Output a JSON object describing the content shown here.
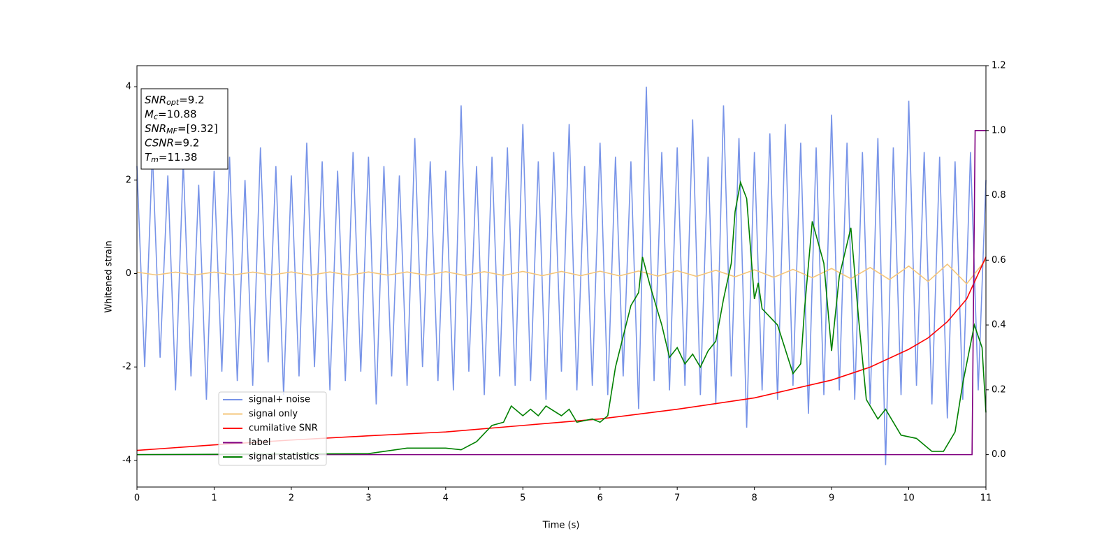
{
  "chart_data": {
    "type": "line",
    "x_label": "Time (s)",
    "y_label": "Whitened strain",
    "xlim": [
      0,
      11
    ],
    "xticks": [
      0,
      1,
      2,
      3,
      4,
      5,
      6,
      7,
      8,
      9,
      10,
      11
    ],
    "ylim": [
      -4.57,
      4.45
    ],
    "yticks": [
      -4,
      -2,
      0,
      2,
      4
    ],
    "y2lim": [
      -0.1,
      1.2
    ],
    "y2ticks": [
      {
        "value": 0,
        "label": "0.0"
      },
      {
        "value": 0.2,
        "label": "0.2"
      },
      {
        "value": 0.4,
        "label": "0.4"
      },
      {
        "value": 0.6,
        "label": "0.6"
      },
      {
        "value": 0.8,
        "label": "0.8"
      },
      {
        "value": 1,
        "label": "1.0"
      },
      {
        "value": 1.2,
        "label": "1.2"
      }
    ],
    "annotation": [
      {
        "var": "SNR",
        "sub": "opt",
        "text": "=9.2"
      },
      {
        "var": "M",
        "sub": "c",
        "text": "=10.88"
      },
      {
        "var": "SNR",
        "sub": "MF",
        "text": "=[9.32]"
      },
      {
        "var": "CSNR",
        "text": "=9.2"
      },
      {
        "var": "T",
        "sub": "m",
        "text": "=11.38"
      }
    ],
    "series": [
      {
        "name": "signal+ noise",
        "color": "#7894e8",
        "x": [
          0,
          0.1,
          0.2,
          0.3,
          0.4,
          0.5,
          0.6,
          0.7,
          0.8,
          0.9,
          1,
          1.1,
          1.2,
          1.3,
          1.4,
          1.5,
          1.6,
          1.7,
          1.8,
          1.9,
          2,
          2.1,
          2.2,
          2.3,
          2.4,
          2.5,
          2.6,
          2.7,
          2.8,
          2.9,
          3,
          3.1,
          3.2,
          3.3,
          3.4,
          3.5,
          3.6,
          3.7,
          3.8,
          3.9,
          4,
          4.1,
          4.2,
          4.3,
          4.4,
          4.5,
          4.6,
          4.7,
          4.8,
          4.9,
          5,
          5.1,
          5.2,
          5.3,
          5.4,
          5.5,
          5.6,
          5.7,
          5.8,
          5.9,
          6,
          6.1,
          6.2,
          6.3,
          6.4,
          6.5,
          6.6,
          6.7,
          6.8,
          6.9,
          7,
          7.1,
          7.2,
          7.3,
          7.4,
          7.5,
          7.6,
          7.7,
          7.8,
          7.9,
          8,
          8.1,
          8.2,
          8.3,
          8.4,
          8.5,
          8.6,
          8.7,
          8.8,
          8.9,
          9,
          9.1,
          9.2,
          9.3,
          9.4,
          9.5,
          9.6,
          9.7,
          9.8,
          9.9,
          10,
          10.1,
          10.2,
          10.3,
          10.4,
          10.5,
          10.6,
          10.7,
          10.8,
          10.9,
          11
        ],
        "values": [
          2.3,
          -2.0,
          2.6,
          -1.8,
          2.1,
          -2.5,
          2.4,
          -2.2,
          1.9,
          -2.7,
          2.2,
          -2.1,
          2.5,
          -2.3,
          2.0,
          -2.4,
          2.7,
          -1.9,
          2.3,
          -2.6,
          2.1,
          -2.2,
          2.8,
          -2.0,
          2.4,
          -2.5,
          2.2,
          -2.3,
          2.6,
          -2.1,
          2.5,
          -2.8,
          2.3,
          -2.2,
          2.1,
          -2.4,
          2.9,
          -2.0,
          2.4,
          -2.3,
          2.2,
          -2.5,
          3.6,
          -2.1,
          2.3,
          -2.6,
          2.5,
          -2.2,
          2.7,
          -2.4,
          3.2,
          -2.3,
          2.4,
          -2.7,
          2.6,
          -2.1,
          3.2,
          -2.5,
          2.3,
          -2.4,
          2.8,
          -2.6,
          2.5,
          -2.2,
          2.4,
          -2.9,
          4.0,
          -2.3,
          2.6,
          -2.5,
          2.7,
          -2.4,
          3.3,
          -2.6,
          2.5,
          -2.8,
          3.6,
          -2.2,
          2.9,
          -3.3,
          2.6,
          -2.5,
          3.0,
          -2.7,
          3.2,
          -2.4,
          2.8,
          -3.0,
          2.7,
          -2.6,
          3.4,
          -2.5,
          2.8,
          -2.7,
          2.6,
          -2.8,
          2.9,
          -4.1,
          2.7,
          -2.6,
          3.7,
          -2.4,
          2.6,
          -2.8,
          2.5,
          -3.1,
          2.4,
          -2.7,
          2.6,
          -2.5,
          2.0
        ]
      },
      {
        "name": "signal only",
        "color": "#f5c67a",
        "x": [
          0,
          0.25,
          0.5,
          0.75,
          1,
          1.25,
          1.5,
          1.75,
          2,
          2.25,
          2.5,
          2.75,
          3,
          3.25,
          3.5,
          3.75,
          4,
          4.25,
          4.5,
          4.75,
          5,
          5.25,
          5.5,
          5.75,
          6,
          6.25,
          6.5,
          6.75,
          7,
          7.25,
          7.5,
          7.75,
          8,
          8.25,
          8.5,
          8.75,
          9,
          9.25,
          9.5,
          9.75,
          10,
          10.25,
          10.5,
          10.75,
          11
        ],
        "values": [
          0.03,
          -0.03,
          0.03,
          -0.03,
          0.03,
          -0.03,
          0.03,
          -0.03,
          0.035,
          -0.035,
          0.035,
          -0.035,
          0.035,
          -0.035,
          0.035,
          -0.035,
          0.04,
          -0.04,
          0.04,
          -0.04,
          0.045,
          -0.045,
          0.045,
          -0.045,
          0.05,
          -0.05,
          0.055,
          -0.055,
          0.06,
          -0.06,
          0.07,
          -0.07,
          0.08,
          -0.08,
          0.09,
          -0.09,
          0.11,
          -0.11,
          0.13,
          -0.13,
          0.16,
          -0.17,
          0.2,
          -0.22,
          0.3
        ]
      },
      {
        "name": "cumilative SNR",
        "color": "#ff0000",
        "axis": "y2",
        "x": [
          0,
          1,
          2,
          3,
          4,
          5,
          6,
          7,
          8,
          9,
          9.5,
          10,
          10.25,
          10.5,
          10.75,
          11
        ],
        "values": [
          0.013,
          0.03,
          0.045,
          0.058,
          0.07,
          0.09,
          0.11,
          0.14,
          0.175,
          0.23,
          0.27,
          0.325,
          0.36,
          0.41,
          0.48,
          0.61
        ]
      },
      {
        "name": "label",
        "color": "#800080",
        "axis": "y2",
        "x": [
          0,
          10.82,
          10.86,
          11
        ],
        "values": [
          0,
          0,
          1,
          1
        ]
      },
      {
        "name": "signal statistics",
        "color": "#008000",
        "axis": "y2",
        "x": [
          0,
          3,
          3.5,
          4,
          4.2,
          4.4,
          4.6,
          4.75,
          4.85,
          5,
          5.1,
          5.2,
          5.3,
          5.5,
          5.6,
          5.7,
          5.9,
          6,
          6.1,
          6.2,
          6.4,
          6.5,
          6.55,
          6.65,
          6.8,
          6.9,
          7,
          7.1,
          7.2,
          7.3,
          7.4,
          7.5,
          7.6,
          7.7,
          7.75,
          7.82,
          7.9,
          8,
          8.05,
          8.1,
          8.3,
          8.5,
          8.6,
          8.65,
          8.75,
          8.9,
          9,
          9.1,
          9.25,
          9.35,
          9.45,
          9.6,
          9.7,
          9.9,
          10.1,
          10.3,
          10.45,
          10.6,
          10.7,
          10.85,
          10.95,
          11
        ],
        "values": [
          0,
          0.003,
          0.02,
          0.02,
          0.015,
          0.04,
          0.09,
          0.1,
          0.15,
          0.12,
          0.14,
          0.12,
          0.15,
          0.12,
          0.14,
          0.1,
          0.11,
          0.1,
          0.12,
          0.27,
          0.46,
          0.5,
          0.61,
          0.52,
          0.4,
          0.3,
          0.33,
          0.28,
          0.31,
          0.27,
          0.32,
          0.35,
          0.48,
          0.59,
          0.75,
          0.84,
          0.79,
          0.48,
          0.53,
          0.45,
          0.4,
          0.25,
          0.28,
          0.45,
          0.72,
          0.59,
          0.32,
          0.55,
          0.7,
          0.42,
          0.17,
          0.11,
          0.14,
          0.06,
          0.05,
          0.01,
          0.01,
          0.07,
          0.22,
          0.4,
          0.33,
          0.13
        ]
      }
    ]
  }
}
